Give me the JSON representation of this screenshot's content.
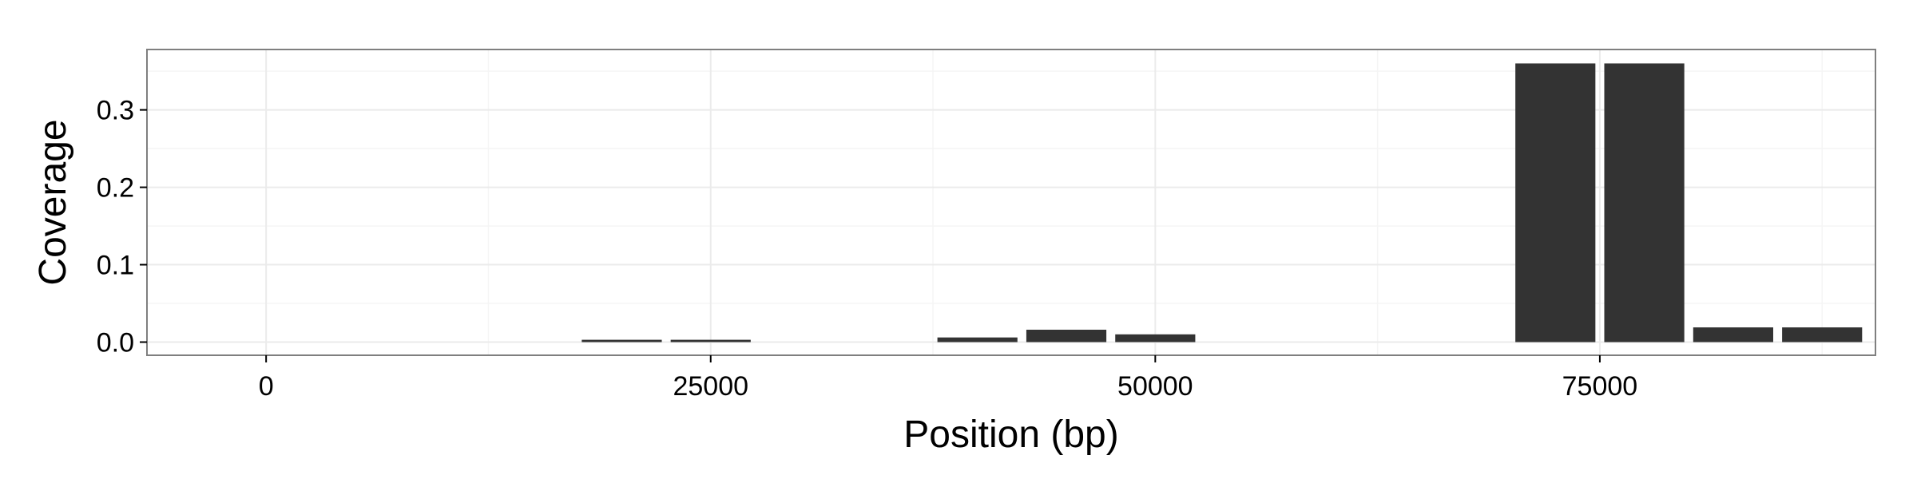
{
  "chart_data": {
    "type": "bar",
    "title": "",
    "xlabel": "Position (bp)",
    "ylabel": "Coverage",
    "xlim": [
      -6700,
      90500
    ],
    "ylim": [
      -0.017,
      0.378
    ],
    "x_ticks": [
      0,
      25000,
      50000,
      75000
    ],
    "x_tick_labels": [
      "0",
      "25000",
      "50000",
      "75000"
    ],
    "y_ticks": [
      0.0,
      0.1,
      0.2,
      0.3
    ],
    "y_tick_labels": [
      "0.0",
      "0.1",
      "0.2",
      "0.3"
    ],
    "grid": true,
    "bar_width": 4500,
    "x": [
      20000,
      25000,
      40000,
      45000,
      50000,
      72500,
      77500,
      82500,
      87500
    ],
    "values": [
      0.003,
      0.003,
      0.006,
      0.016,
      0.01,
      0.36,
      0.36,
      0.019,
      0.019
    ],
    "bar_color": "#333333",
    "panel_border_color": "#7f7f7f",
    "grid_major_color": "#ebebeb",
    "grid_minor_color": "#f5f5f5"
  }
}
